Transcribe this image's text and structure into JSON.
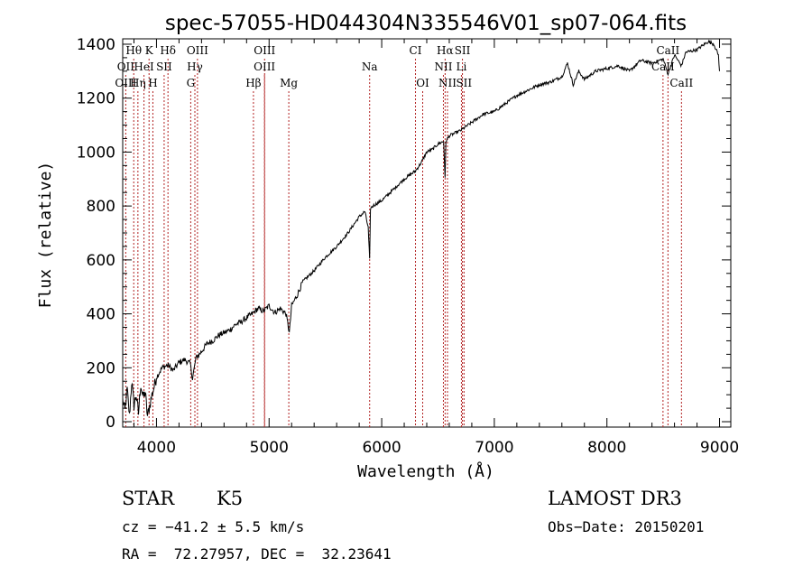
{
  "chart_data": {
    "type": "line",
    "title": "spec-57055-HD044304N335546V01_sp07-064.fits",
    "xlabel": "Wavelength (Å)",
    "ylabel": "Flux (relative)",
    "xlim": [
      3700,
      9100
    ],
    "ylim": [
      -20,
      1420
    ],
    "xticks": [
      4000,
      5000,
      6000,
      7000,
      8000,
      9000
    ],
    "yticks": [
      0,
      200,
      400,
      600,
      800,
      1000,
      1200,
      1400
    ],
    "series": [
      {
        "name": "flux",
        "x": [
          3700,
          3720,
          3740,
          3760,
          3780,
          3800,
          3820,
          3840,
          3860,
          3880,
          3900,
          3920,
          3940,
          3960,
          3980,
          4000,
          4050,
          4100,
          4150,
          4200,
          4250,
          4300,
          4320,
          4350,
          4400,
          4450,
          4500,
          4550,
          4600,
          4650,
          4700,
          4750,
          4800,
          4850,
          4900,
          4950,
          5000,
          5050,
          5100,
          5150,
          5180,
          5200,
          5250,
          5300,
          5400,
          5500,
          5600,
          5700,
          5800,
          5850,
          5880,
          5893,
          5900,
          5920,
          6000,
          6100,
          6200,
          6300,
          6350,
          6400,
          6450,
          6500,
          6550,
          6563,
          6570,
          6600,
          6650,
          6700,
          6800,
          6900,
          7000,
          7100,
          7200,
          7300,
          7400,
          7500,
          7600,
          7650,
          7700,
          7750,
          7800,
          7900,
          8000,
          8100,
          8200,
          8300,
          8400,
          8500,
          8542,
          8600,
          8662,
          8700,
          8800,
          8900,
          8950,
          8990,
          9000
        ],
        "values": [
          80,
          40,
          120,
          20,
          150,
          60,
          100,
          30,
          140,
          90,
          110,
          20,
          60,
          100,
          130,
          165,
          200,
          210,
          190,
          220,
          230,
          215,
          160,
          235,
          260,
          290,
          300,
          320,
          330,
          340,
          360,
          370,
          385,
          400,
          420,
          410,
          430,
          405,
          420,
          400,
          330,
          430,
          470,
          520,
          560,
          610,
          650,
          700,
          760,
          780,
          720,
          600,
          790,
          800,
          820,
          860,
          900,
          930,
          960,
          1000,
          1010,
          1030,
          1040,
          900,
          1040,
          1060,
          1070,
          1080,
          1110,
          1140,
          1150,
          1180,
          1210,
          1230,
          1250,
          1260,
          1280,
          1330,
          1250,
          1300,
          1270,
          1300,
          1310,
          1320,
          1300,
          1340,
          1330,
          1345,
          1290,
          1360,
          1320,
          1370,
          1380,
          1410,
          1400,
          1360,
          1300
        ]
      }
    ],
    "line_style": {
      "color": "#000000",
      "marker_color": "#b22222"
    },
    "markers": [
      {
        "label": "Hθ",
        "wl": 3798,
        "row": 0
      },
      {
        "label": "K",
        "wl": 3934,
        "row": 0
      },
      {
        "label": "Hδ",
        "wl": 4102,
        "row": 0
      },
      {
        "label": "OIII",
        "wl": 4364,
        "row": 0
      },
      {
        "label": "OIII",
        "wl": 4960,
        "row": 0
      },
      {
        "label": "CI",
        "wl": 6300,
        "row": 0
      },
      {
        "label": "Hα",
        "wl": 6563,
        "row": 0
      },
      {
        "label": "SII",
        "wl": 6717,
        "row": 0
      },
      {
        "label": "CaII",
        "wl": 8542,
        "row": 0
      },
      {
        "label": "OII",
        "wl": 3727,
        "row": 1
      },
      {
        "label": "HeI",
        "wl": 3889,
        "row": 1
      },
      {
        "label": "SII",
        "wl": 4068,
        "row": 1
      },
      {
        "label": "Hγ",
        "wl": 4341,
        "row": 1
      },
      {
        "label": "OIII",
        "wl": 4959,
        "row": 1
      },
      {
        "label": "Na",
        "wl": 5893,
        "row": 1
      },
      {
        "label": "NII",
        "wl": 6548,
        "row": 1
      },
      {
        "label": "Li",
        "wl": 6708,
        "row": 1
      },
      {
        "label": "CaII",
        "wl": 8498,
        "row": 1
      },
      {
        "label": "OIII",
        "wl": 3727,
        "row": 2
      },
      {
        "label": "Hη",
        "wl": 3835,
        "row": 2
      },
      {
        "label": "H",
        "wl": 3968,
        "row": 2
      },
      {
        "label": "G",
        "wl": 4304,
        "row": 2
      },
      {
        "label": "Hβ",
        "wl": 4861,
        "row": 2
      },
      {
        "label": "Mg",
        "wl": 5175,
        "row": 2
      },
      {
        "label": "OI",
        "wl": 6364,
        "row": 2
      },
      {
        "label": "NII",
        "wl": 6584,
        "row": 2
      },
      {
        "label": "SII",
        "wl": 6731,
        "row": 2
      },
      {
        "label": "CaII",
        "wl": 8662,
        "row": 2
      }
    ]
  },
  "footer": {
    "object_type": "STAR",
    "subclass": "K5",
    "survey": "LAMOST DR3",
    "cz": "cz = −41.2 ± 5.5 km/s",
    "obs_date": "Obs−Date: 20150201",
    "coords": "RA =  72.27957, DEC =  32.23641"
  }
}
